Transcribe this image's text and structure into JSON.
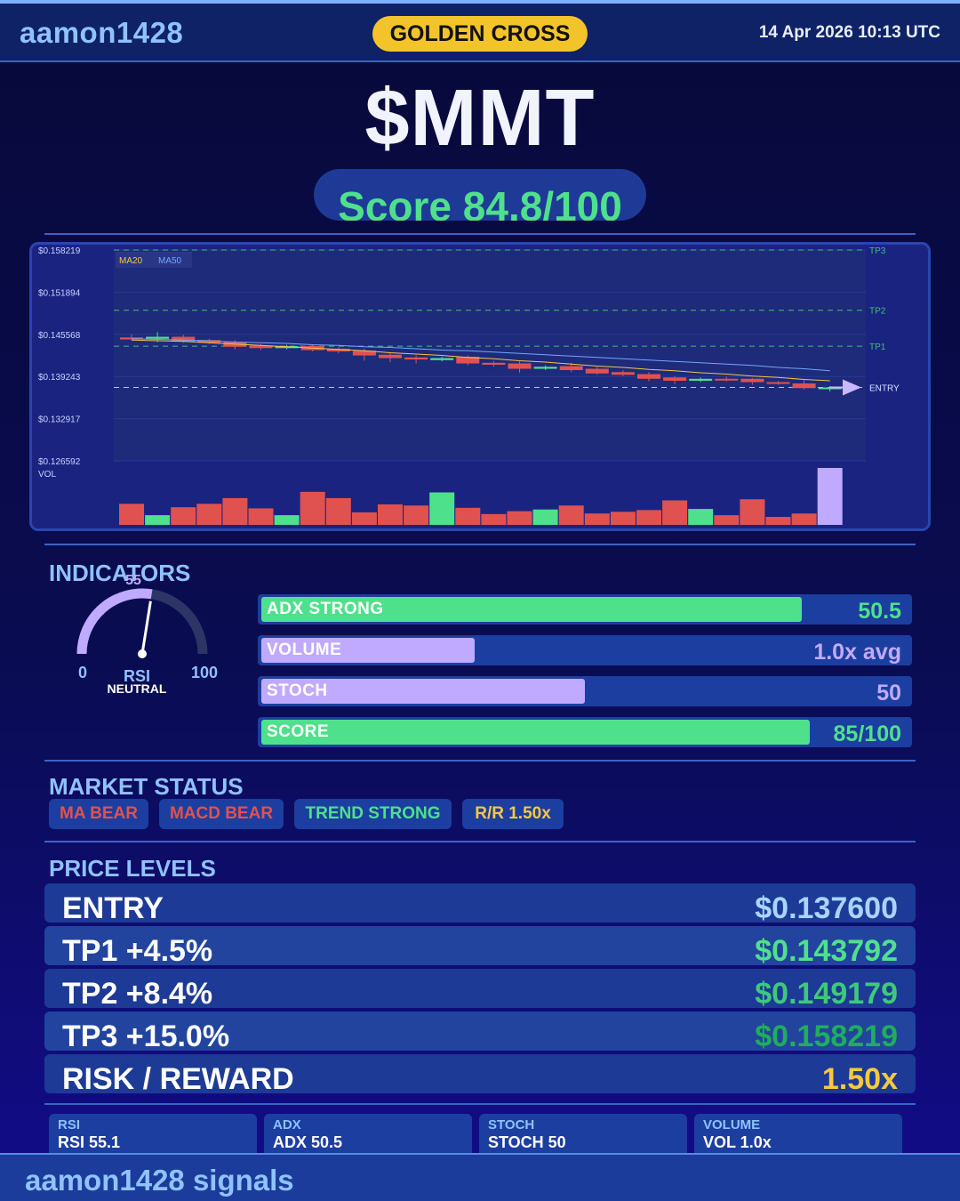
{
  "header": {
    "brand": "aamon1428",
    "badge": "GOLDEN CROSS",
    "datetime": "14 Apr 2026  10:13 UTC"
  },
  "ticker": "$MMT",
  "score_label": "Score 84.8/100",
  "colors": {
    "green": "#4fe08c",
    "red": "#e0524f",
    "purple": "#c0aaff",
    "gold": "#f7c83e",
    "blue_light": "#8fc2ff",
    "ma20": "#f2c64a",
    "ma50": "#6fa8ff"
  },
  "chart_data": {
    "type": "candlestick",
    "y_ticks": [
      "$0.158219",
      "$0.151894",
      "$0.145568",
      "$0.139243",
      "$0.132917",
      "$0.126592"
    ],
    "ylim": [
      0.126592,
      0.158219
    ],
    "legend": [
      "MA20",
      "MA50"
    ],
    "vol_label": "VOL",
    "levels": [
      {
        "name": "TP3",
        "value": 0.158219
      },
      {
        "name": "TP2",
        "value": 0.149179
      },
      {
        "name": "TP1",
        "value": 0.143792
      },
      {
        "name": "ENTRY",
        "value": 0.1376
      }
    ],
    "candles": [
      {
        "o": 0.1451,
        "c": 0.1448,
        "h": 0.1455,
        "l": 0.1447
      },
      {
        "o": 0.1449,
        "c": 0.1452,
        "h": 0.1459,
        "l": 0.1444
      },
      {
        "o": 0.1452,
        "c": 0.1445,
        "h": 0.1455,
        "l": 0.1443
      },
      {
        "o": 0.1447,
        "c": 0.1443,
        "h": 0.1449,
        "l": 0.1441
      },
      {
        "o": 0.1444,
        "c": 0.1437,
        "h": 0.1447,
        "l": 0.1433
      },
      {
        "o": 0.1439,
        "c": 0.1435,
        "h": 0.1441,
        "l": 0.1432
      },
      {
        "o": 0.1435,
        "c": 0.1438,
        "h": 0.144,
        "l": 0.1433
      },
      {
        "o": 0.1438,
        "c": 0.1432,
        "h": 0.144,
        "l": 0.143
      },
      {
        "o": 0.1434,
        "c": 0.143,
        "h": 0.1436,
        "l": 0.1427
      },
      {
        "o": 0.1431,
        "c": 0.1424,
        "h": 0.1434,
        "l": 0.1416
      },
      {
        "o": 0.1425,
        "c": 0.142,
        "h": 0.1428,
        "l": 0.1414
      },
      {
        "o": 0.1421,
        "c": 0.1418,
        "h": 0.1424,
        "l": 0.1412
      },
      {
        "o": 0.1417,
        "c": 0.142,
        "h": 0.1422,
        "l": 0.1415
      },
      {
        "o": 0.1422,
        "c": 0.1412,
        "h": 0.1424,
        "l": 0.1409
      },
      {
        "o": 0.1413,
        "c": 0.141,
        "h": 0.1416,
        "l": 0.1407
      },
      {
        "o": 0.1412,
        "c": 0.1404,
        "h": 0.1415,
        "l": 0.1398
      },
      {
        "o": 0.1404,
        "c": 0.1407,
        "h": 0.1409,
        "l": 0.1402
      },
      {
        "o": 0.1408,
        "c": 0.1402,
        "h": 0.1413,
        "l": 0.1399
      },
      {
        "o": 0.1404,
        "c": 0.1397,
        "h": 0.1407,
        "l": 0.1395
      },
      {
        "o": 0.1399,
        "c": 0.1395,
        "h": 0.1402,
        "l": 0.1393
      },
      {
        "o": 0.1396,
        "c": 0.1389,
        "h": 0.1399,
        "l": 0.1385
      },
      {
        "o": 0.1391,
        "c": 0.1386,
        "h": 0.1393,
        "l": 0.1381
      },
      {
        "o": 0.1386,
        "c": 0.1389,
        "h": 0.1391,
        "l": 0.1384
      },
      {
        "o": 0.1389,
        "c": 0.1387,
        "h": 0.1392,
        "l": 0.1385
      },
      {
        "o": 0.1389,
        "c": 0.1384,
        "h": 0.139,
        "l": 0.138
      },
      {
        "o": 0.1384,
        "c": 0.1382,
        "h": 0.1386,
        "l": 0.138
      },
      {
        "o": 0.1382,
        "c": 0.1375,
        "h": 0.1387,
        "l": 0.1373
      },
      {
        "o": 0.1376,
        "c": 0.1376,
        "h": 0.1378,
        "l": 0.137
      }
    ],
    "ma20": [
      0.1447,
      0.1446,
      0.1445,
      0.1443,
      0.1441,
      0.1439,
      0.1437,
      0.1435,
      0.1433,
      0.1431,
      0.1428,
      0.1426,
      0.1424,
      0.1421,
      0.1419,
      0.1416,
      0.1414,
      0.1411,
      0.1408,
      0.1406,
      0.1403,
      0.1401,
      0.1398,
      0.1396,
      0.1393,
      0.1391,
      0.1388,
      0.1386
    ],
    "ma50": [
      0.1449,
      0.1448,
      0.1447,
      0.1446,
      0.1444,
      0.1443,
      0.1442,
      0.144,
      0.1439,
      0.1437,
      0.1436,
      0.1434,
      0.1432,
      0.1431,
      0.1429,
      0.1427,
      0.1425,
      0.1423,
      0.1421,
      0.1419,
      0.1417,
      0.1415,
      0.1413,
      0.1411,
      0.1409,
      0.1406,
      0.1404,
      0.1401
    ],
    "volume": [
      0.37,
      0.17,
      0.31,
      0.37,
      0.47,
      0.29,
      0.17,
      0.58,
      0.47,
      0.22,
      0.36,
      0.34,
      0.57,
      0.3,
      0.19,
      0.24,
      0.27,
      0.34,
      0.2,
      0.23,
      0.26,
      0.43,
      0.28,
      0.17,
      0.45,
      0.14,
      0.2,
      1.0
    ]
  },
  "indicators": {
    "title": "INDICATORS",
    "rsi": {
      "value": 55,
      "value_text": "55",
      "min_label": "0",
      "max_label": "100",
      "label": "RSI",
      "state": "NEUTRAL"
    },
    "bars": [
      {
        "label": "ADX  STRONG",
        "value": "50.5",
        "fill": 0.835,
        "color": "#4fe08c",
        "value_color": "#4fe08c"
      },
      {
        "label": "VOLUME",
        "value": "1.0x avg",
        "fill": 0.33,
        "color": "#c0aaff",
        "value_color": "#c0aaff"
      },
      {
        "label": "STOCH",
        "value": "50",
        "fill": 0.5,
        "color": "#c0aaff",
        "value_color": "#c0aaff"
      },
      {
        "label": "SCORE",
        "value": "85/100",
        "fill": 0.848,
        "color": "#4fe08c",
        "value_color": "#4fe08c"
      }
    ]
  },
  "market_status": {
    "title": "MARKET STATUS",
    "chips": [
      {
        "label": "MA BEAR",
        "color": "#e0524f"
      },
      {
        "label": "MACD BEAR",
        "color": "#e0524f"
      },
      {
        "label": "TREND STRONG",
        "color": "#4fe08c"
      },
      {
        "label": "R/R  1.50x",
        "color": "#f7c83e"
      }
    ]
  },
  "price_levels": {
    "title": "PRICE LEVELS",
    "rows": [
      {
        "label": "ENTRY",
        "value": "$0.137600",
        "color": "#a9d4ff"
      },
      {
        "label": "TP1  +4.5%",
        "value": "$0.143792",
        "color": "#4fe08c"
      },
      {
        "label": "TP2  +8.4%",
        "value": "$0.149179",
        "color": "#3ec97a"
      },
      {
        "label": "TP3  +15.0%",
        "value": "$0.158219",
        "color": "#1fae5c"
      },
      {
        "label": "RISK / REWARD",
        "value": "1.50x",
        "color": "#f7c83e"
      }
    ]
  },
  "mini_stats": [
    {
      "key": "RSI",
      "value": "RSI 55.1"
    },
    {
      "key": "ADX",
      "value": "ADX 50.5"
    },
    {
      "key": "STOCH",
      "value": "STOCH 50"
    },
    {
      "key": "VOLUME",
      "value": "VOL 1.0x"
    }
  ],
  "footer": "aamon1428 signals"
}
